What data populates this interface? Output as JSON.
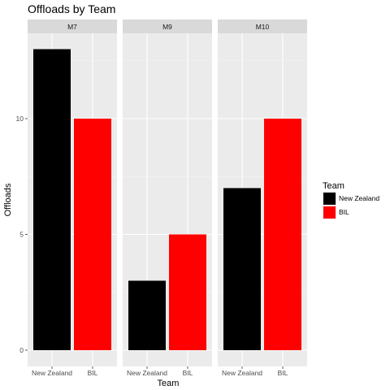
{
  "chart_data": {
    "type": "bar",
    "title": "Offloads  by Team",
    "xlabel": "Team",
    "ylabel": "Offloads",
    "ylim": [
      0,
      13.6
    ],
    "yticks": [
      0,
      5,
      10
    ],
    "categories": [
      "New Zealand",
      "BIL"
    ],
    "facets": [
      {
        "label": "M7",
        "values": [
          13,
          10
        ]
      },
      {
        "label": "M9",
        "values": [
          3,
          5
        ]
      },
      {
        "label": "M10",
        "values": [
          7,
          10
        ]
      }
    ],
    "legend": {
      "title": "Team",
      "position": "right",
      "entries": [
        {
          "name": "New Zealand",
          "color": "#000000"
        },
        {
          "name": "BIL",
          "color": "#ff0000"
        }
      ]
    },
    "colors": {
      "New Zealand": "#000000",
      "BIL": "#ff0000"
    },
    "grid": true,
    "panel_background": "#ebebeb",
    "strip_background": "#d9d9d9"
  }
}
